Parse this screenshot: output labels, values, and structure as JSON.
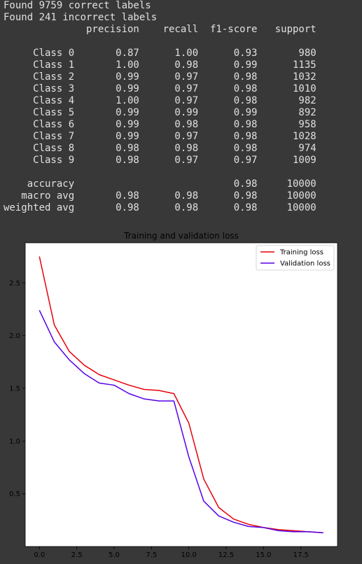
{
  "output": {
    "correct_line": "Found 9759 correct labels",
    "incorrect_line": "Found 241 incorrect labels"
  },
  "report": {
    "headers": [
      "precision",
      "recall",
      "f1-score",
      "support"
    ],
    "rows": [
      {
        "label": "Class 0",
        "precision": "0.87",
        "recall": "1.00",
        "f1": "0.93",
        "support": "980"
      },
      {
        "label": "Class 1",
        "precision": "1.00",
        "recall": "0.98",
        "f1": "0.99",
        "support": "1135"
      },
      {
        "label": "Class 2",
        "precision": "0.99",
        "recall": "0.97",
        "f1": "0.98",
        "support": "1032"
      },
      {
        "label": "Class 3",
        "precision": "0.99",
        "recall": "0.97",
        "f1": "0.98",
        "support": "1010"
      },
      {
        "label": "Class 4",
        "precision": "1.00",
        "recall": "0.97",
        "f1": "0.98",
        "support": "982"
      },
      {
        "label": "Class 5",
        "precision": "0.99",
        "recall": "0.99",
        "f1": "0.99",
        "support": "892"
      },
      {
        "label": "Class 6",
        "precision": "0.99",
        "recall": "0.98",
        "f1": "0.98",
        "support": "958"
      },
      {
        "label": "Class 7",
        "precision": "0.99",
        "recall": "0.97",
        "f1": "0.98",
        "support": "1028"
      },
      {
        "label": "Class 8",
        "precision": "0.98",
        "recall": "0.98",
        "f1": "0.98",
        "support": "974"
      },
      {
        "label": "Class 9",
        "precision": "0.98",
        "recall": "0.97",
        "f1": "0.97",
        "support": "1009"
      }
    ],
    "summary": [
      {
        "label": "accuracy",
        "precision": "",
        "recall": "",
        "f1": "0.98",
        "support": "10000"
      },
      {
        "label": "macro avg",
        "precision": "0.98",
        "recall": "0.98",
        "f1": "0.98",
        "support": "10000"
      },
      {
        "label": "weighted avg",
        "precision": "0.98",
        "recall": "0.98",
        "f1": "0.98",
        "support": "10000"
      }
    ]
  },
  "colors": {
    "background": "#383838",
    "text": "#e0e0e0",
    "training": "#e8000b",
    "validation": "#5500e8"
  },
  "chart_data": {
    "type": "line",
    "title": "Training and validation loss",
    "xlabel": "",
    "ylabel": "",
    "xlim": [
      -0.95,
      19.95
    ],
    "ylim": [
      0.0,
      2.88
    ],
    "xticks": [
      0.0,
      2.5,
      5.0,
      7.5,
      10.0,
      12.5,
      15.0,
      17.5
    ],
    "xtick_labels": [
      "0.0",
      "2.5",
      "5.0",
      "7.5",
      "10.0",
      "12.5",
      "15.0",
      "17.5"
    ],
    "yticks": [
      0.5,
      1.0,
      1.5,
      2.0,
      2.5
    ],
    "ytick_labels": [
      "0.5",
      "1.0",
      "1.5",
      "2.0",
      "2.5"
    ],
    "grid": false,
    "legend_position": "top-right",
    "x": [
      0,
      1,
      2,
      3,
      4,
      5,
      6,
      7,
      8,
      9,
      10,
      11,
      12,
      13,
      14,
      15,
      16,
      17,
      18,
      19
    ],
    "series": [
      {
        "name": "Training loss",
        "color": "#e8000b",
        "values": [
          2.75,
          2.1,
          1.85,
          1.72,
          1.63,
          1.58,
          1.53,
          1.49,
          1.48,
          1.45,
          1.17,
          0.64,
          0.37,
          0.26,
          0.21,
          0.18,
          0.16,
          0.15,
          0.14,
          0.13
        ]
      },
      {
        "name": "Validation loss",
        "color": "#5500e8",
        "values": [
          2.24,
          1.94,
          1.77,
          1.64,
          1.55,
          1.53,
          1.45,
          1.4,
          1.38,
          1.38,
          0.85,
          0.43,
          0.29,
          0.23,
          0.19,
          0.18,
          0.15,
          0.14,
          0.14,
          0.13
        ]
      }
    ]
  }
}
